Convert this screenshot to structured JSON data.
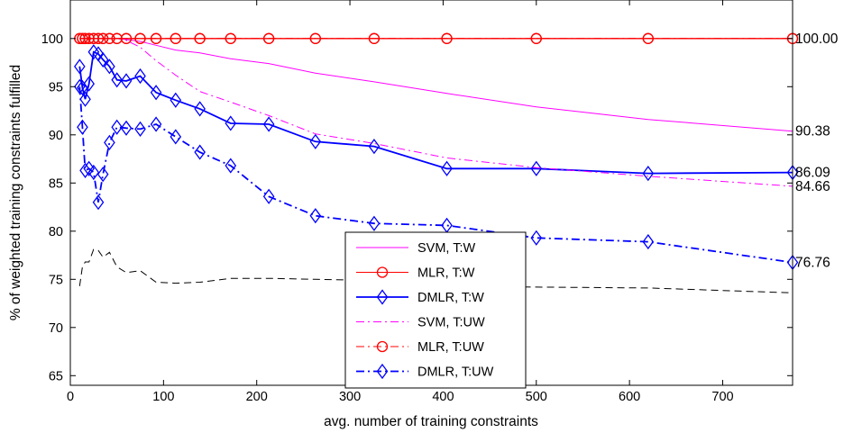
{
  "chart_data": {
    "type": "line",
    "title": "",
    "xlabel": "avg. number of training constraints",
    "ylabel": "% of weighted training constraints fulfilled",
    "xlim": [
      0,
      775
    ],
    "ylim": [
      64,
      104
    ],
    "x_ticks": [
      0,
      100,
      200,
      300,
      400,
      500,
      600,
      700
    ],
    "x_tick_labels": [
      "0",
      "100",
      "200",
      "300",
      "400",
      "500",
      "600",
      "700"
    ],
    "y_ticks": [
      65,
      70,
      75,
      80,
      85,
      90,
      95,
      100
    ],
    "y_tick_labels": [
      "65",
      "70",
      "75",
      "80",
      "85",
      "90",
      "95",
      "100"
    ],
    "grid": false,
    "legend_position": "bottom-center",
    "series": [
      {
        "name": "SVM, T:W",
        "color": "#ff00ff",
        "line": "solid",
        "marker": "none",
        "x": [
          10,
          13,
          16,
          20,
          25,
          30,
          35,
          42,
          50,
          60,
          75,
          92,
          113,
          139,
          172,
          213,
          263,
          326,
          404,
          500,
          620,
          775
        ],
        "y": [
          100,
          100,
          100,
          100,
          100,
          100,
          100,
          100,
          100,
          99.9,
          99.7,
          99.3,
          98.8,
          98.5,
          97.9,
          97.4,
          96.4,
          95.5,
          94.3,
          92.9,
          91.6,
          90.38
        ]
      },
      {
        "name": "MLR, T:W",
        "color": "#ff0000",
        "line": "solid",
        "marker": "circle",
        "x": [
          10,
          13,
          16,
          20,
          25,
          30,
          35,
          42,
          50,
          60,
          75,
          92,
          113,
          139,
          172,
          213,
          263,
          326,
          404,
          500,
          620,
          775
        ],
        "y": [
          100,
          100,
          100,
          100,
          100,
          100,
          100,
          100,
          100,
          100,
          100,
          100,
          100,
          100,
          100,
          100,
          100,
          100,
          100,
          100,
          100,
          100
        ]
      },
      {
        "name": "DMLR, T:W",
        "color": "#0000ff",
        "line": "solid",
        "marker": "diamond",
        "x": [
          10,
          13,
          16,
          20,
          25,
          30,
          35,
          42,
          50,
          60,
          75,
          92,
          113,
          139,
          172,
          213,
          263,
          326,
          404,
          500,
          620,
          775
        ],
        "y": [
          97.1,
          94.9,
          93.7,
          95.3,
          98.6,
          98.4,
          97.8,
          97.1,
          95.7,
          95.6,
          96.1,
          94.4,
          93.6,
          92.7,
          91.2,
          91.1,
          89.3,
          88.8,
          86.5,
          86.5,
          86.0,
          86.09
        ]
      },
      {
        "name": "SVM, T:UW",
        "color": "#ff00ff",
        "line": "dashdot",
        "marker": "none",
        "x": [
          10,
          13,
          16,
          20,
          25,
          30,
          35,
          42,
          50,
          60,
          75,
          92,
          113,
          139,
          172,
          213,
          263,
          326,
          404,
          500,
          620,
          775
        ],
        "y": [
          100,
          100,
          100,
          100,
          100,
          100,
          100,
          100,
          100,
          99.8,
          99.1,
          97.7,
          96.2,
          94.5,
          93.4,
          92.0,
          90.1,
          89.1,
          87.6,
          86.6,
          85.7,
          84.66
        ]
      },
      {
        "name": "MLR, T:UW",
        "color": "#ff0000",
        "line": "dashdot",
        "marker": "circle",
        "x": [
          10,
          13,
          16,
          20,
          25,
          30,
          35,
          42,
          50,
          60,
          75,
          92,
          113,
          139,
          172,
          213,
          263,
          326,
          404,
          500,
          620,
          775
        ],
        "y": [
          100,
          100,
          100,
          100,
          100,
          100,
          100,
          100,
          100,
          100,
          100,
          100,
          100,
          100,
          100,
          100,
          100,
          100,
          100,
          100,
          100,
          100
        ]
      },
      {
        "name": "DMLR, T:UW",
        "color": "#0000ff",
        "line": "dashdot",
        "marker": "diamond",
        "x": [
          10,
          13,
          16,
          20,
          25,
          30,
          35,
          42,
          50,
          60,
          75,
          92,
          113,
          139,
          172,
          213,
          263,
          326,
          404,
          500,
          620,
          775
        ],
        "y": [
          95.0,
          90.8,
          86.3,
          86.5,
          86.1,
          83.0,
          85.9,
          89.2,
          90.8,
          90.7,
          90.6,
          91.1,
          89.8,
          88.2,
          86.8,
          83.6,
          81.6,
          80.8,
          80.6,
          79.3,
          78.9,
          76.76
        ]
      },
      {
        "name": "",
        "color": "#000000",
        "line": "dashed",
        "marker": "none",
        "x": [
          10,
          13,
          16,
          20,
          25,
          30,
          35,
          42,
          50,
          60,
          75,
          92,
          113,
          139,
          172,
          213,
          263,
          326,
          404,
          500,
          620,
          775
        ],
        "y": [
          74.3,
          76.3,
          76.8,
          76.8,
          78.1,
          78.0,
          77.3,
          77.8,
          76.3,
          75.7,
          75.9,
          74.7,
          74.6,
          74.7,
          75.1,
          75.1,
          75.0,
          74.9,
          74.3,
          74.2,
          74.1,
          73.6
        ]
      }
    ],
    "end_labels": [
      {
        "text": "100.00",
        "y": 100
      },
      {
        "text": "90.38",
        "y": 90.38
      },
      {
        "text": "86.09",
        "y": 86.09
      },
      {
        "text": "84.66",
        "y": 84.66
      },
      {
        "text": "76.76",
        "y": 76.76
      }
    ]
  }
}
